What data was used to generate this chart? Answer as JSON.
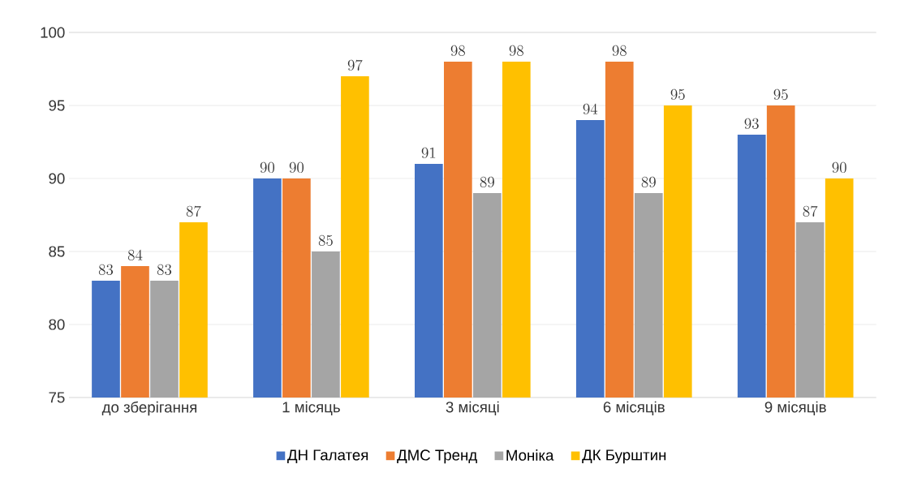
{
  "chart_data": {
    "type": "bar",
    "categories": [
      "до зберігання",
      "1 місяць",
      "3 місяці",
      "6 місяців",
      "9 місяців"
    ],
    "series": [
      {
        "name": "ДН Галатея",
        "color": "#4472c4",
        "values": [
          83,
          90,
          91,
          94,
          93
        ]
      },
      {
        "name": "ДМС Тренд",
        "color": "#ed7d31",
        "values": [
          84,
          90,
          98,
          98,
          95
        ]
      },
      {
        "name": "Моніка",
        "color": "#a5a5a5",
        "values": [
          83,
          85,
          89,
          89,
          87
        ]
      },
      {
        "name": "ДК Бурштин",
        "color": "#ffc000",
        "values": [
          87,
          97,
          98,
          95,
          90
        ]
      }
    ],
    "ylim": [
      75,
      100
    ],
    "yticks": [
      75,
      80,
      85,
      90,
      95,
      100
    ],
    "grid": "y",
    "legend": "bottom",
    "data_labels": true
  }
}
